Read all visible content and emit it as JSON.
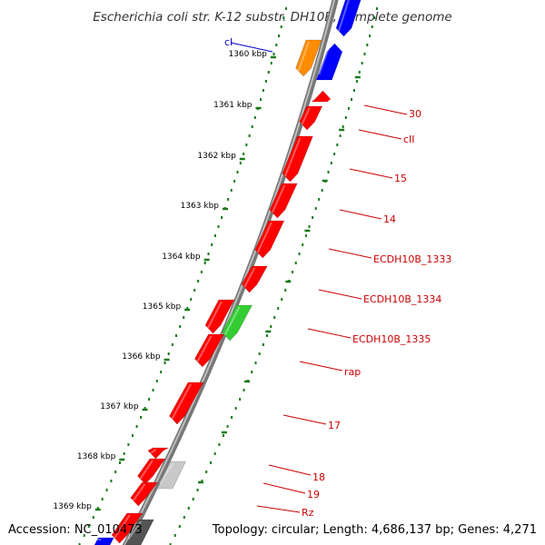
{
  "title": "Escherichia coli str. K-12 substr. DH10B, complete genome",
  "footer": {
    "accession": "Accession: NC_010473",
    "topology": "Topology: circular; Length: 4,686,137 bp; Genes: 4,271"
  },
  "colors": {
    "backbone": "#808080",
    "ticks": "#1a7a1a",
    "red_gene": "#ff0000",
    "blue_gene": "#0000ff",
    "orange_gene": "#ff8c00",
    "green_gene": "#33cc33",
    "grey_gene": "#c8c8c8",
    "dark_gene": "#555555",
    "label_red": "#cc0000",
    "label_blue": "#0000cc"
  },
  "ruler": [
    {
      "kbp": 1360,
      "label": "1360 kbp"
    },
    {
      "kbp": 1361,
      "label": "1361 kbp"
    },
    {
      "kbp": 1362,
      "label": "1362 kbp"
    },
    {
      "kbp": 1363,
      "label": "1363 kbp"
    },
    {
      "kbp": 1364,
      "label": "1364 kbp"
    },
    {
      "kbp": 1365,
      "label": "1365 kbp"
    },
    {
      "kbp": 1366,
      "label": "1366 kbp"
    },
    {
      "kbp": 1367,
      "label": "1367 kbp"
    },
    {
      "kbp": 1368,
      "label": "1368 kbp"
    },
    {
      "kbp": 1369,
      "label": "1369 kbp"
    }
  ],
  "genes": [
    {
      "name": "cI",
      "color": "blue_gene",
      "labeled": true,
      "label_color": "label_blue"
    },
    {
      "name": "",
      "color": "orange_gene",
      "labeled": false
    },
    {
      "name": "",
      "color": "blue_gene",
      "labeled": false
    },
    {
      "name": "30",
      "color": "red_gene",
      "labeled": true,
      "label_color": "label_red"
    },
    {
      "name": "cII",
      "color": "red_gene",
      "labeled": true,
      "label_color": "label_red"
    },
    {
      "name": "15",
      "color": "red_gene",
      "labeled": true,
      "label_color": "label_red"
    },
    {
      "name": "14",
      "color": "red_gene",
      "labeled": true,
      "label_color": "label_red"
    },
    {
      "name": "ECDH10B_1333",
      "color": "red_gene",
      "labeled": true,
      "label_color": "label_red"
    },
    {
      "name": "ECDH10B_1334",
      "color": "red_gene",
      "labeled": true,
      "label_color": "label_red"
    },
    {
      "name": "ECDH10B_1335",
      "color": "green_gene",
      "labeled": true,
      "label_color": "label_red"
    },
    {
      "name": "rap",
      "color": "red_gene",
      "labeled": true,
      "label_color": "label_red"
    },
    {
      "name": "17",
      "color": "red_gene",
      "labeled": true,
      "label_color": "label_red"
    },
    {
      "name": "18",
      "color": "grey_gene",
      "labeled": true,
      "label_color": "label_red"
    },
    {
      "name": "19",
      "color": "red_gene",
      "labeled": true,
      "label_color": "label_red"
    },
    {
      "name": "Rz",
      "color": "red_gene",
      "labeled": true,
      "label_color": "label_red"
    },
    {
      "name": "",
      "color": "dark_gene",
      "labeled": false
    },
    {
      "name": "",
      "color": "blue_gene",
      "labeled": false
    }
  ]
}
